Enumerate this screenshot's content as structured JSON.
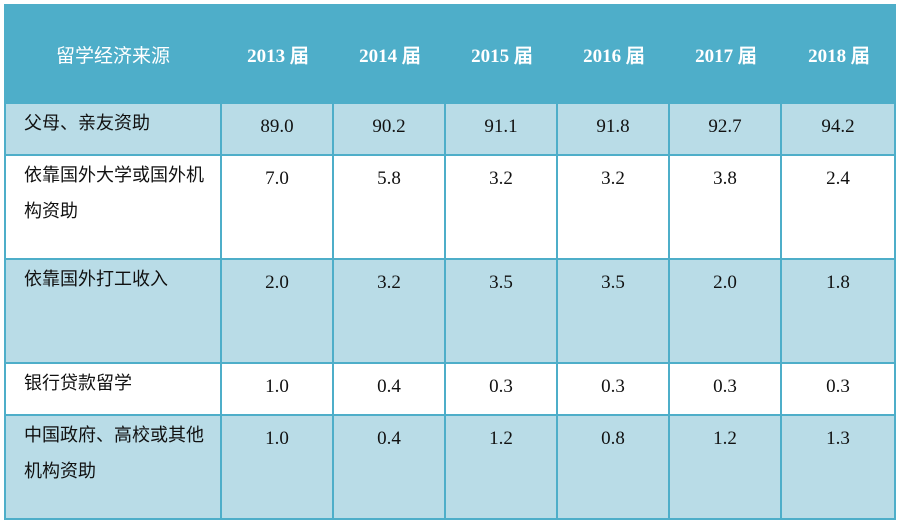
{
  "table": {
    "header": {
      "first": "留学经济来源",
      "years": [
        "2013 届",
        "2014 届",
        "2015 届",
        "2016 届",
        "2017 届",
        "2018 届"
      ]
    },
    "rows": [
      {
        "label": "父母、亲友资助",
        "values": [
          "89.0",
          "90.2",
          "91.1",
          "91.8",
          "92.7",
          "94.2"
        ]
      },
      {
        "label": "依靠国外大学或国外机构资助",
        "values": [
          "7.0",
          "5.8",
          "3.2",
          "3.2",
          "3.8",
          "2.4"
        ]
      },
      {
        "label": "依靠国外打工收入",
        "values": [
          "2.0",
          "3.2",
          "3.5",
          "3.5",
          "2.0",
          "1.8"
        ]
      },
      {
        "label": "银行贷款留学",
        "values": [
          "1.0",
          "0.4",
          "0.3",
          "0.3",
          "0.3",
          "0.3"
        ]
      },
      {
        "label": "中国政府、高校或其他机构资助",
        "values": [
          "1.0",
          "0.4",
          "1.2",
          "0.8",
          "1.2",
          "1.3"
        ]
      }
    ],
    "colors": {
      "header": "#4eaec9",
      "band": "#b9dce7",
      "white": "#ffffff"
    }
  }
}
